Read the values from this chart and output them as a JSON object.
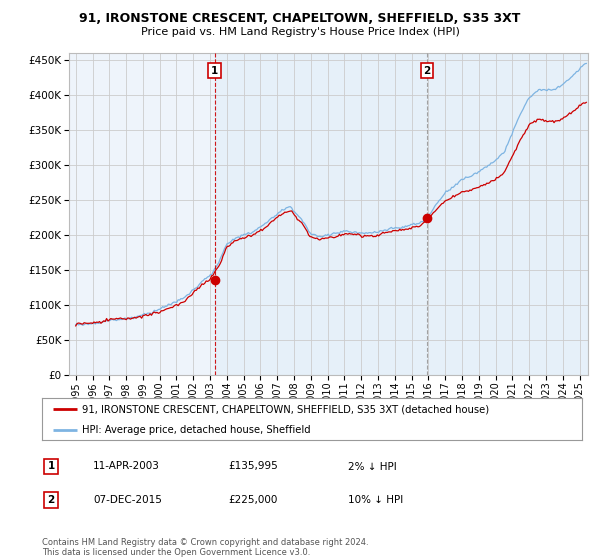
{
  "title": "91, IRONSTONE CRESCENT, CHAPELTOWN, SHEFFIELD, S35 3XT",
  "subtitle": "Price paid vs. HM Land Registry's House Price Index (HPI)",
  "hpi_label": "HPI: Average price, detached house, Sheffield",
  "property_label": "91, IRONSTONE CRESCENT, CHAPELTOWN, SHEFFIELD, S35 3XT (detached house)",
  "transaction1_date": "11-APR-2003",
  "transaction1_price": 135995,
  "transaction1_note": "2% ↓ HPI",
  "transaction1_year": 2003.27,
  "transaction2_date": "07-DEC-2015",
  "transaction2_price": 225000,
  "transaction2_note": "10% ↓ HPI",
  "transaction2_year": 2015.92,
  "hpi_color": "#7EB4E2",
  "property_color": "#CC0000",
  "vline1_color": "#CC0000",
  "vline2_color": "#999999",
  "marker_color": "#CC0000",
  "fill_color": "#D6E8F5",
  "background_color": "#FFFFFF",
  "plot_bg_color": "#EEF4FB",
  "grid_color": "#CCCCCC",
  "footer_text": "Contains HM Land Registry data © Crown copyright and database right 2024.\nThis data is licensed under the Open Government Licence v3.0.",
  "ylim": [
    0,
    460000
  ],
  "xlim_start": 1994.6,
  "xlim_end": 2025.5,
  "figwidth": 6.0,
  "figheight": 5.6
}
